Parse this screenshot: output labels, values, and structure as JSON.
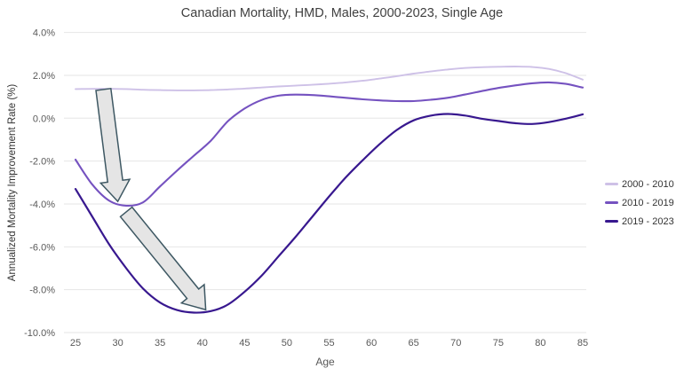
{
  "background": "#ffffff",
  "colors": {
    "title_text": "#404040",
    "axis_title_text": "#333333",
    "tick_text": "#595959",
    "gridline": "#e6e6e6",
    "arrow_fill": "#e5e5e5",
    "arrow_stroke": "#3e5863"
  },
  "chart_data": {
    "type": "line",
    "title": "Canadian Mortality, HMD, Males, 2000-2023, Single Age",
    "xlabel": "Age",
    "ylabel": "Annualized Mortality Improvement Rate (%)",
    "xlim": [
      25,
      85
    ],
    "ylim": [
      -10,
      4
    ],
    "grid": "horizontal",
    "legend_position": "right",
    "x_ticks": [
      25,
      30,
      35,
      40,
      45,
      50,
      55,
      60,
      65,
      70,
      75,
      80,
      85
    ],
    "y_ticks": [
      {
        "value": 4,
        "label": "4.0%"
      },
      {
        "value": 2,
        "label": "2.0%"
      },
      {
        "value": 0,
        "label": "0.0%"
      },
      {
        "value": -2,
        "label": "-2.0%"
      },
      {
        "value": -4,
        "label": "-4.0%"
      },
      {
        "value": -6,
        "label": "-6.0%"
      },
      {
        "value": -8,
        "label": "-8.0%"
      },
      {
        "value": -10,
        "label": "-10.0%"
      }
    ],
    "x": [
      25,
      27,
      29,
      31,
      33,
      35,
      37,
      39,
      41,
      43,
      45,
      47,
      49,
      51,
      53,
      55,
      57,
      59,
      61,
      63,
      65,
      67,
      69,
      71,
      73,
      75,
      77,
      79,
      81,
      83,
      85
    ],
    "series": [
      {
        "name": "2000 - 2010",
        "color": "#cec1e7",
        "stroke_width": 1.9,
        "values": [
          1.36,
          1.37,
          1.37,
          1.36,
          1.33,
          1.31,
          1.3,
          1.3,
          1.31,
          1.34,
          1.38,
          1.43,
          1.48,
          1.52,
          1.56,
          1.61,
          1.67,
          1.75,
          1.85,
          1.96,
          2.08,
          2.18,
          2.27,
          2.34,
          2.38,
          2.4,
          2.41,
          2.39,
          2.3,
          2.1,
          1.8
        ]
      },
      {
        "name": "2010 - 2019",
        "color": "#7552c0",
        "stroke_width": 2.1,
        "values": [
          -1.93,
          -3.1,
          -3.85,
          -4.08,
          -3.92,
          -3.18,
          -2.45,
          -1.75,
          -1.05,
          -0.15,
          0.45,
          0.85,
          1.05,
          1.1,
          1.08,
          1.02,
          0.95,
          0.88,
          0.83,
          0.8,
          0.8,
          0.86,
          0.95,
          1.1,
          1.26,
          1.41,
          1.53,
          1.63,
          1.67,
          1.6,
          1.43
        ]
      },
      {
        "name": "2019 - 2023",
        "color": "#38188f",
        "stroke_width": 2.2,
        "values": [
          -3.3,
          -4.6,
          -5.9,
          -7.0,
          -7.95,
          -8.6,
          -8.95,
          -9.07,
          -9.0,
          -8.7,
          -8.1,
          -7.35,
          -6.45,
          -5.55,
          -4.6,
          -3.65,
          -2.75,
          -1.95,
          -1.2,
          -0.55,
          -0.1,
          0.12,
          0.2,
          0.13,
          -0.02,
          -0.13,
          -0.23,
          -0.27,
          -0.18,
          -0.02,
          0.18
        ]
      }
    ],
    "annotations": [
      {
        "type": "block-arrow",
        "name": "arrow-to-2010s-dip",
        "from": {
          "age": 28.3,
          "value": 1.34
        },
        "to": {
          "age": 30.0,
          "value": -3.88
        },
        "shaft_width": 17,
        "head_width": 33,
        "head_length": 23
      },
      {
        "type": "block-arrow",
        "name": "arrow-to-2019s-dip",
        "from": {
          "age": 31.0,
          "value": -4.37
        },
        "to": {
          "age": 40.4,
          "value": -8.93
        },
        "shaft_width": 17,
        "head_width": 33,
        "head_length": 23
      }
    ]
  }
}
